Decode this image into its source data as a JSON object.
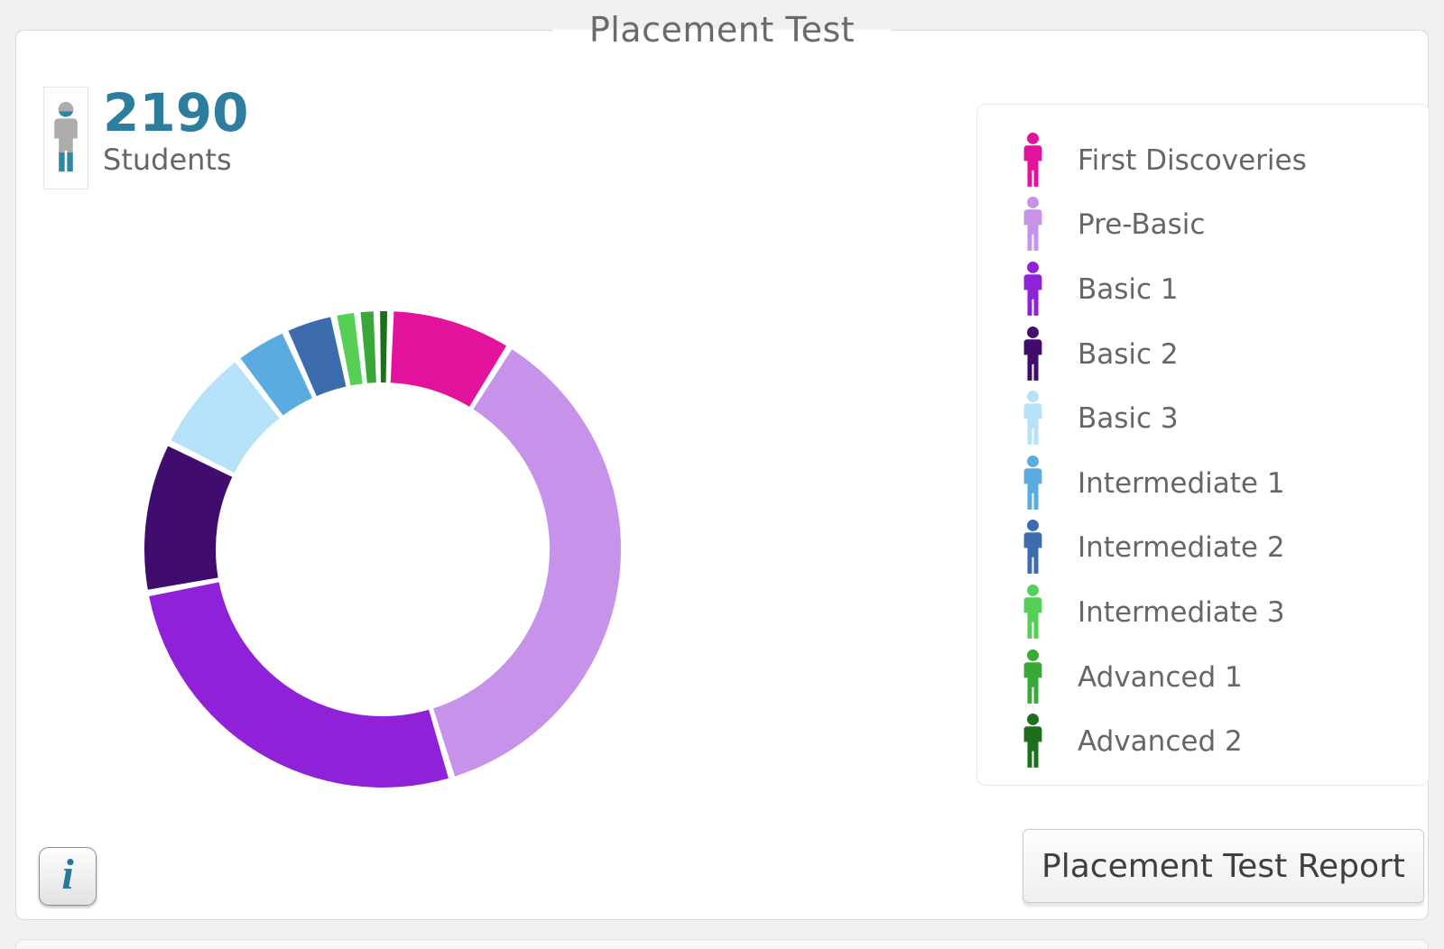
{
  "panel": {
    "title": "Placement Test"
  },
  "stat": {
    "value": "2190",
    "label": "Students"
  },
  "buttons": {
    "info_label": "i",
    "report_label": "Placement Test Report"
  },
  "colors": {
    "accent_teal": "#2D7D9F",
    "person_gray": "#ACACAC",
    "person_teal": "#2F86A7",
    "text_gray": "#666666"
  },
  "chart_data": {
    "type": "pie",
    "subtype": "donut",
    "title": "Placement Test",
    "total_students": 2190,
    "total_label": "Students",
    "start_angle_deg": 2.7,
    "gap_deg": 1.6,
    "inner_radius_ratio": 0.7,
    "legend_position": "right",
    "categories": [
      "First Discoveries",
      "Pre-Basic",
      "Basic 1",
      "Basic 2",
      "Basic 3",
      "Intermediate 1",
      "Intermediate 2",
      "Intermediate 3",
      "Advanced 1",
      "Advanced 2"
    ],
    "segments": [
      {
        "label": "First Discoveries",
        "color": "#E2129C",
        "percent": 8.3
      },
      {
        "label": "Pre-Basic",
        "color": "#C792E9",
        "percent": 37.6
      },
      {
        "label": "Basic 1",
        "color": "#8F22D9",
        "percent": 27.5
      },
      {
        "label": "Basic 2",
        "color": "#400D6E",
        "percent": 10.3
      },
      {
        "label": "Basic 3",
        "color": "#B5E2F8",
        "percent": 7.1
      },
      {
        "label": "Intermediate 1",
        "color": "#5AACE0",
        "percent": 3.4
      },
      {
        "label": "Intermediate 2",
        "color": "#3D6CAE",
        "percent": 3.1
      },
      {
        "label": "Intermediate 3",
        "color": "#55CF55",
        "percent": 1.2
      },
      {
        "label": "Advanced 1",
        "color": "#38A838",
        "percent": 0.9
      },
      {
        "label": "Advanced 2",
        "color": "#1C701C",
        "percent": 0.5
      }
    ]
  }
}
